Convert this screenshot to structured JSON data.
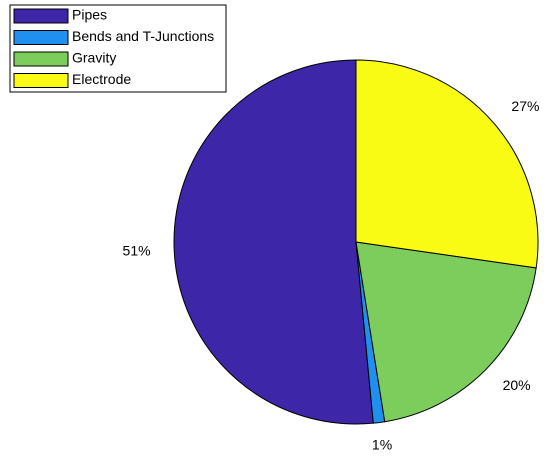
{
  "chart_data": {
    "type": "pie",
    "categories": [
      "Pipes",
      "Bends and T-Junctions",
      "Gravity",
      "Electrode"
    ],
    "values": [
      51,
      1,
      20,
      27
    ],
    "value_labels": [
      "51%",
      "1%",
      "20%",
      "27%"
    ],
    "colors": [
      "#3e26a8",
      "#1f8ff0",
      "#7ccd5b",
      "#f9fb15"
    ],
    "legend": "upper-left"
  }
}
